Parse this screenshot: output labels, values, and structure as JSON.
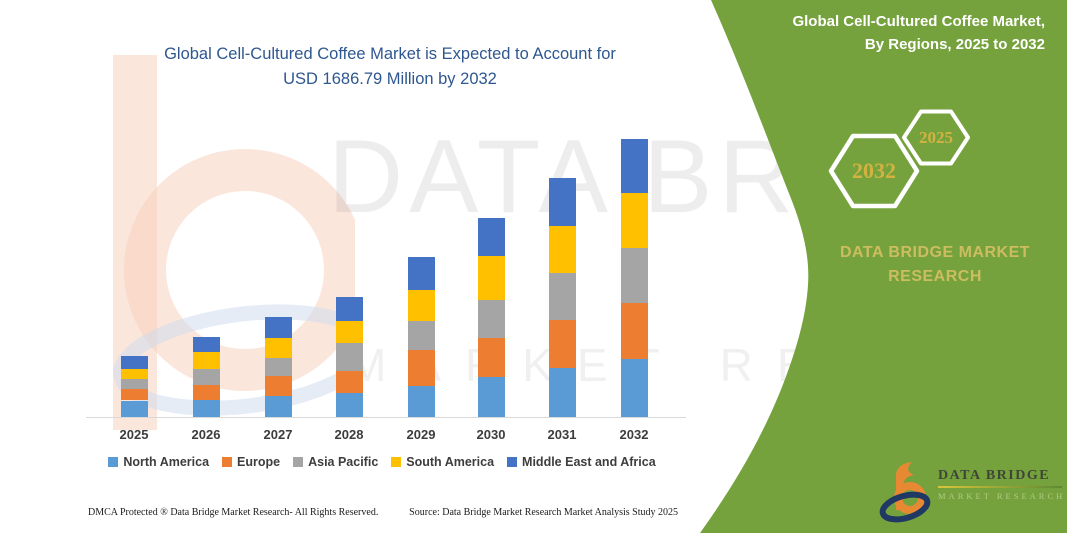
{
  "chart": {
    "title_line1": "Global Cell-Cultured Coffee Market is Expected to Account for",
    "title_line2": "USD 1686.79 Million by 2032",
    "title_color": "#2e5790"
  },
  "chart_data": {
    "type": "bar",
    "subtype": "stacked-vertical",
    "title": "Global Cell-Cultured Coffee Market is Expected to Account for USD 1686.79 Million by 2032",
    "unit": "USD Million",
    "categories": [
      "2025",
      "2026",
      "2027",
      "2028",
      "2029",
      "2030",
      "2031",
      "2032"
    ],
    "series": [
      {
        "name": "North America",
        "color": "#5B9BD5",
        "values": [
          100,
          101,
          125,
          145,
          190,
          242,
          297,
          352
        ]
      },
      {
        "name": "Europe",
        "color": "#ED7D31",
        "values": [
          67,
          95,
          121,
          132,
          218,
          236,
          289,
          340
        ]
      },
      {
        "name": "Asia Pacific",
        "color": "#A5A5A5",
        "values": [
          65,
          95,
          111,
          172,
          172,
          232,
          287,
          333
        ]
      },
      {
        "name": "South America",
        "color": "#FFC000",
        "values": [
          56,
          101,
          121,
          132,
          192,
          267,
          283,
          333
        ]
      },
      {
        "name": "Middle East and Africa",
        "color": "#4472C4",
        "values": [
          80,
          93,
          127,
          147,
          196,
          228,
          293,
          328.79
        ]
      }
    ],
    "totals": [
      368,
      485,
      605,
      728,
      968,
      1205,
      1449,
      1686.79
    ],
    "xlabel": "",
    "ylabel": "",
    "y_axis_visible": false,
    "grid": false,
    "legend_position": "bottom"
  },
  "footer": {
    "dmca": "DMCA Protected ® Data Bridge Market Research- All Rights Reserved.",
    "source": "Source: Data Bridge Market Research Market Analysis Study 2025"
  },
  "panel": {
    "bg_color": "#75a23d",
    "title_line1": "Global Cell-Cultured Coffee Market,",
    "title_line2": "By Regions, 2025 to 2032",
    "hexagon_left": "2032",
    "hexagon_right": "2025",
    "brand_heading_line1": "DATA BRIDGE MARKET",
    "brand_heading_line2": "RESEARCH",
    "accent_text_color": "#d2b341"
  },
  "logo": {
    "name": "DATA BRIDGE",
    "tagline": "MARKET RESEARCH"
  },
  "watermark": {
    "text": "DATA BRIDGE",
    "subtext": "MARKET RESEARCH"
  }
}
